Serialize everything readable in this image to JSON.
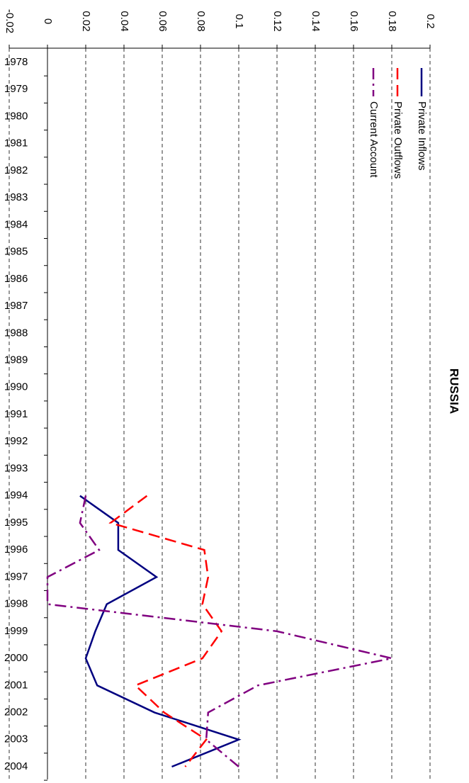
{
  "chart_data": {
    "type": "line",
    "title": "RUSSIA",
    "categories": [
      "1978",
      "1979",
      "1980",
      "1981",
      "1982",
      "1983",
      "1984",
      "1985",
      "1986",
      "1987",
      "1988",
      "1989",
      "1990",
      "1991",
      "1992",
      "1993",
      "1994",
      "1995",
      "1996",
      "1997",
      "1998",
      "1999",
      "2000",
      "2001",
      "2002",
      "2003",
      "2004"
    ],
    "series": [
      {
        "name": "Private Inflows",
        "color": "#000080",
        "dash": "",
        "values": [
          null,
          null,
          null,
          null,
          null,
          null,
          null,
          null,
          null,
          null,
          null,
          null,
          null,
          null,
          null,
          null,
          0.017,
          0.037,
          0.037,
          0.057,
          0.031,
          0.025,
          0.02,
          0.026,
          0.056,
          0.1,
          0.065
        ]
      },
      {
        "name": "Private Outflows",
        "color": "#ff0000",
        "dash": "16 8",
        "values": [
          null,
          null,
          null,
          null,
          null,
          null,
          null,
          null,
          null,
          null,
          null,
          null,
          null,
          null,
          null,
          null,
          0.052,
          0.033,
          0.082,
          0.084,
          0.081,
          0.091,
          0.081,
          0.046,
          0.061,
          0.083,
          0.072
        ]
      },
      {
        "name": "Current Account",
        "color": "#800080",
        "dash": "16 6 3 6",
        "values": [
          null,
          null,
          null,
          null,
          null,
          null,
          null,
          null,
          null,
          null,
          null,
          null,
          null,
          null,
          null,
          null,
          0.02,
          0.017,
          0.027,
          0,
          0,
          0.12,
          0.18,
          0.11,
          0.084,
          0.083,
          0.1
        ]
      }
    ],
    "ylim": [
      -0.02,
      0.2
    ],
    "yticks": [
      -0.02,
      0,
      0.02,
      0.04,
      0.06,
      0.08,
      0.1,
      0.12,
      0.14,
      0.16,
      0.18,
      0.2
    ],
    "grid": true
  }
}
